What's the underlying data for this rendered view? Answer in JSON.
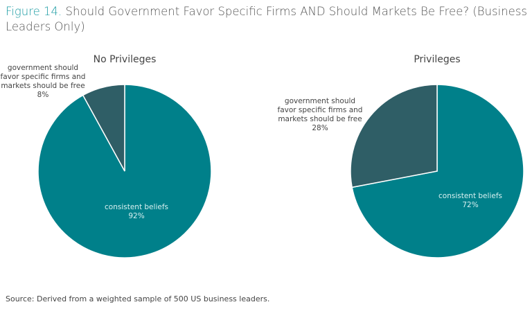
{
  "title_prefix": "Figure 14.",
  "title": "Should Government Favor Specific Firms AND Should Markets Be Free? (Business Leaders Only)",
  "source": "Source: Derived from a weighted sample of 500 US business leaders.",
  "colors": {
    "consistent": "#00808a",
    "favor": "#2f5e66",
    "title_accent": "#1a9ba3"
  },
  "chart_data": [
    {
      "type": "pie",
      "title": "No Privileges",
      "slices": [
        {
          "label": [
            "consistent beliefs"
          ],
          "value": 92,
          "value_label": "92%"
        },
        {
          "label": [
            "government should",
            "favor specific firms and",
            "markets should be free"
          ],
          "value": 8,
          "value_label": "8%"
        }
      ]
    },
    {
      "type": "pie",
      "title": "Privileges",
      "slices": [
        {
          "label": [
            "consistent beliefs"
          ],
          "value": 72,
          "value_label": "72%"
        },
        {
          "label": [
            "government should",
            "favor specific firms and",
            "markets should be free"
          ],
          "value": 28,
          "value_label": "28%"
        }
      ]
    }
  ]
}
